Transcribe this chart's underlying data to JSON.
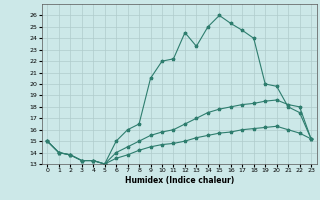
{
  "title": "",
  "xlabel": "Humidex (Indice chaleur)",
  "ylabel": "",
  "bg_color": "#cce8e8",
  "grid_color": "#b0cccc",
  "line_color": "#2e7d6e",
  "xlim": [
    -0.5,
    23.5
  ],
  "ylim": [
    13,
    27
  ],
  "yticks": [
    13,
    14,
    15,
    16,
    17,
    18,
    19,
    20,
    21,
    22,
    23,
    24,
    25,
    26
  ],
  "xticks": [
    0,
    1,
    2,
    3,
    4,
    5,
    6,
    7,
    8,
    9,
    10,
    11,
    12,
    13,
    14,
    15,
    16,
    17,
    18,
    19,
    20,
    21,
    22,
    23
  ],
  "series": [
    [
      15.0,
      14.0,
      13.8,
      13.3,
      13.3,
      13.0,
      15.0,
      16.0,
      16.5,
      20.5,
      22.0,
      22.2,
      24.5,
      23.3,
      25.0,
      26.0,
      25.3,
      24.7,
      24.0,
      20.0,
      19.8,
      18.0,
      17.5,
      15.2
    ],
    [
      15.0,
      14.0,
      13.8,
      13.3,
      13.3,
      13.0,
      14.0,
      14.5,
      15.0,
      15.5,
      15.8,
      16.0,
      16.5,
      17.0,
      17.5,
      17.8,
      18.0,
      18.2,
      18.3,
      18.5,
      18.6,
      18.2,
      18.0,
      15.2
    ],
    [
      15.0,
      14.0,
      13.8,
      13.3,
      13.3,
      13.0,
      13.5,
      13.8,
      14.2,
      14.5,
      14.7,
      14.8,
      15.0,
      15.3,
      15.5,
      15.7,
      15.8,
      16.0,
      16.1,
      16.2,
      16.3,
      16.0,
      15.7,
      15.2
    ]
  ]
}
